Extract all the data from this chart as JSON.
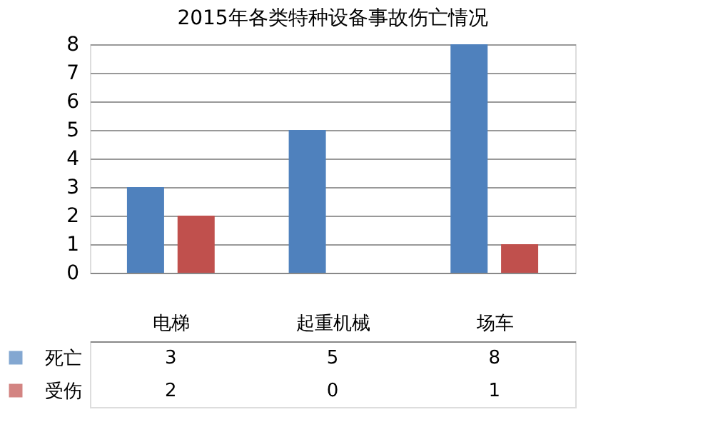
{
  "chart_data": {
    "type": "bar",
    "title": "2015年各类特种设备事故伤亡情况",
    "categories": [
      "电梯",
      "起重机械",
      "场车"
    ],
    "series": [
      {
        "name": "死亡",
        "color": "#4f81bd",
        "values": [
          3,
          5,
          8
        ]
      },
      {
        "name": "受伤",
        "color": "#c0504d",
        "values": [
          2,
          0,
          1
        ]
      }
    ],
    "ylim": [
      0,
      8
    ],
    "yticks": [
      0,
      1,
      2,
      3,
      4,
      5,
      6,
      7,
      8
    ],
    "grid": "y",
    "data_labels": true,
    "legend": "bottom"
  }
}
